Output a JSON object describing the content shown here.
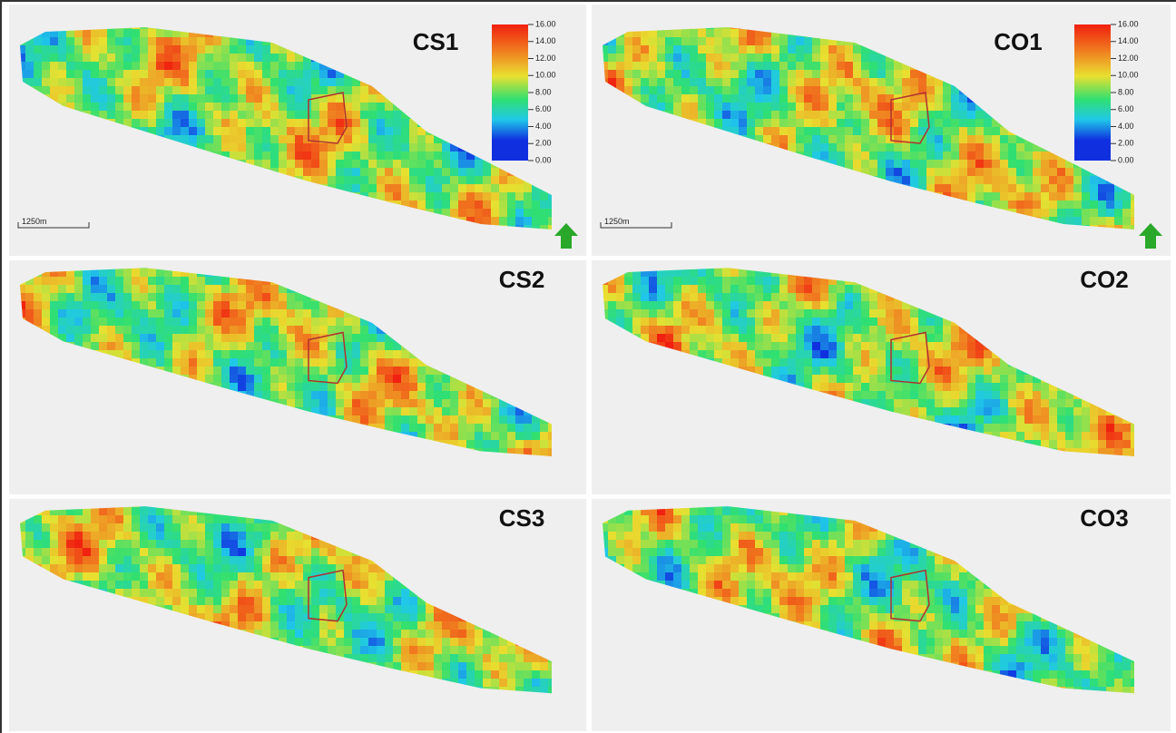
{
  "panels": [
    {
      "label": "CS1",
      "scale_bar": "1250m",
      "colorbar": [
        "16.00",
        "14.00",
        "12.00",
        "10.00",
        "8.00",
        "6.00",
        "4.00",
        "2.00",
        "0.00"
      ]
    },
    {
      "label": "CO1",
      "scale_bar": "1250m",
      "colorbar": [
        "16.00",
        "14.00",
        "12.00",
        "10.00",
        "8.00",
        "6.00",
        "4.00",
        "2.00",
        "0.00"
      ]
    },
    {
      "label": "CS2"
    },
    {
      "label": "CO2"
    },
    {
      "label": "CS3"
    },
    {
      "label": "CO3"
    }
  ]
}
